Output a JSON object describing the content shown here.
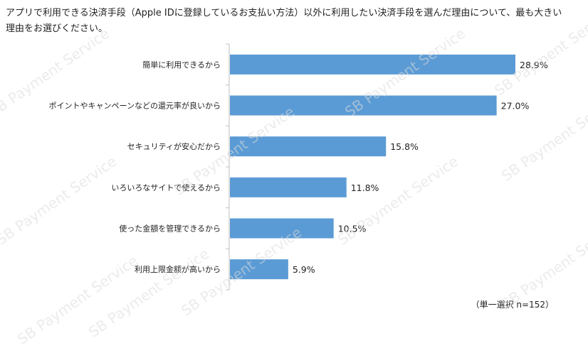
{
  "question_lines": [
    "アプリで利用できる決済手段（Apple IDに登録しているお支払い方法）以外に利用したい決済手段を選んだ理由について、最も大きい",
    "理由をお選びください。"
  ],
  "note": "（単一選択 n=152）",
  "watermark_text": "SB Payment Service",
  "chart_data": {
    "type": "bar",
    "orientation": "horizontal",
    "categories": [
      "簡単に利用できるから",
      "ポイントやキャンペーンなどの還元率が良いから",
      "セキュリティが安心だから",
      "いろいろなサイトで使えるから",
      "使った金額を管理できるから",
      "利用上限金額が高いから"
    ],
    "values": [
      28.9,
      27.0,
      15.8,
      11.8,
      10.5,
      5.9
    ],
    "data_labels": [
      "28.9%",
      "27.0%",
      "15.8%",
      "11.8%",
      "10.5%",
      "5.9%"
    ],
    "xlim": [
      0,
      32
    ],
    "grid": false,
    "bar_color": "#5b9bd5"
  }
}
